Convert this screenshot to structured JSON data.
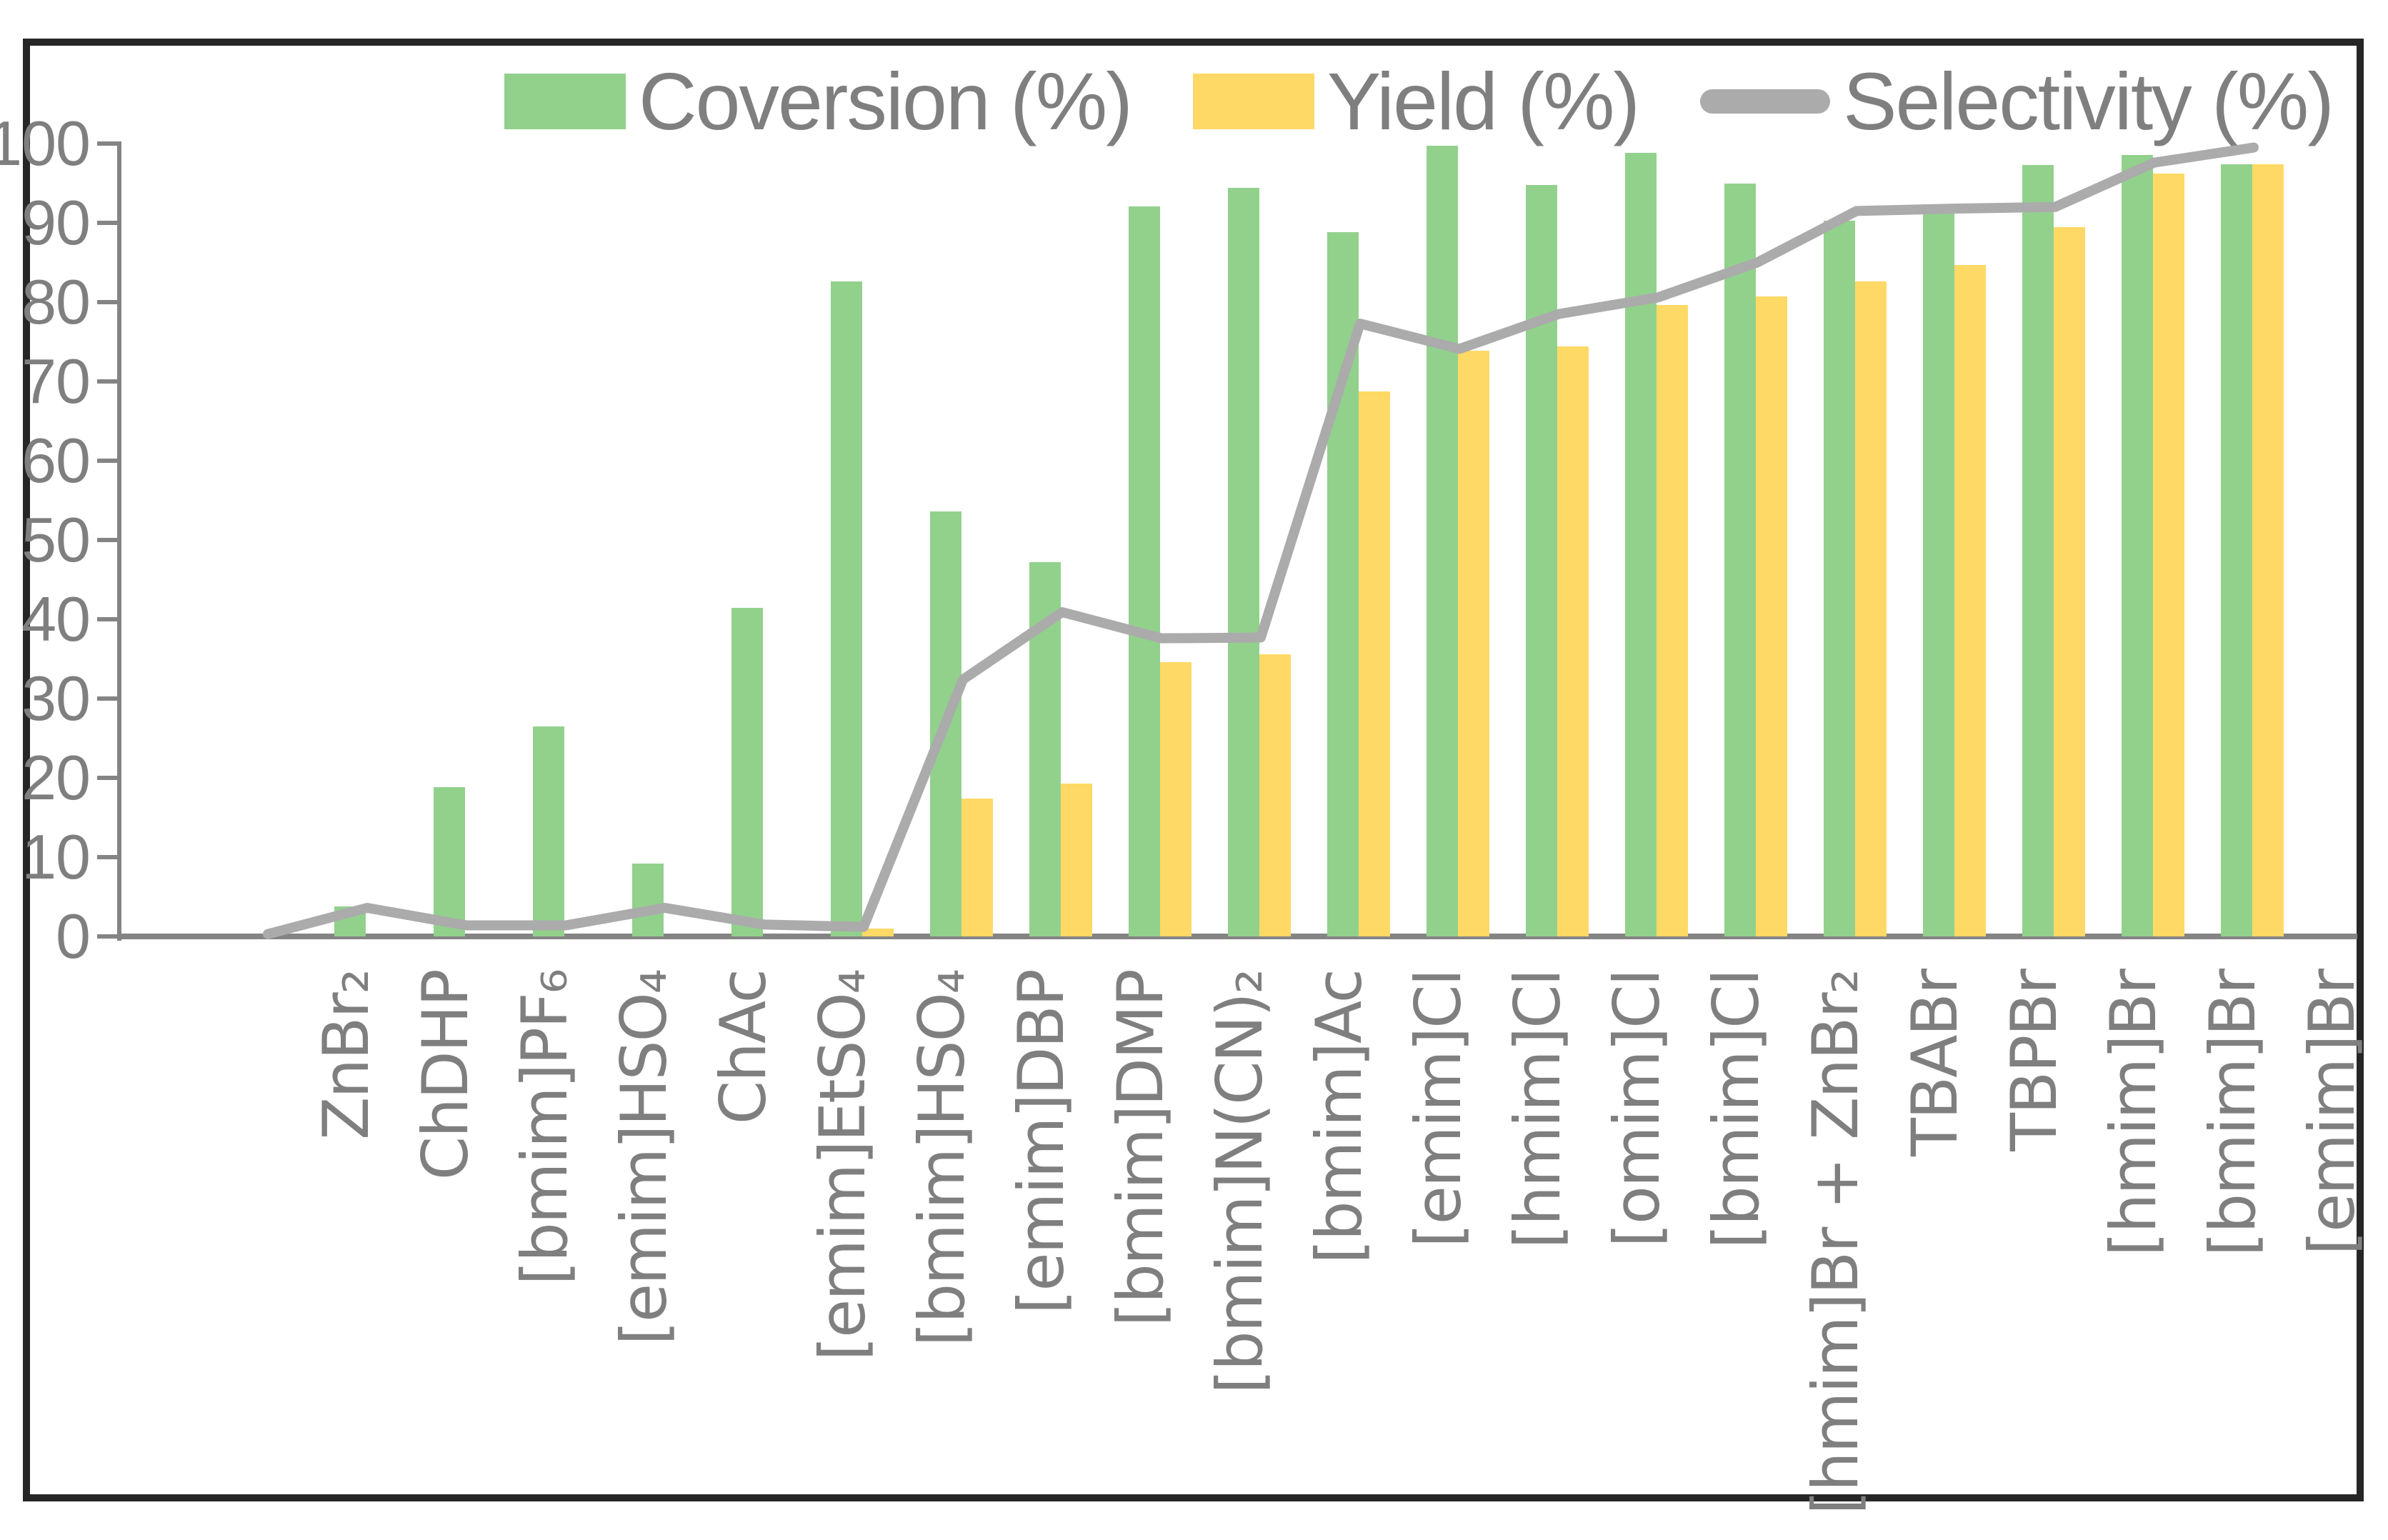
{
  "figure": {
    "background": "#ffffff",
    "border_color": "#262626"
  },
  "colors": {
    "conversion_bar": "#92D18C",
    "yield_bar": "#FFD965",
    "selectivity_line": "#ABABAB",
    "axis": "#848484",
    "text": "#7f7f7f"
  },
  "chart_data": {
    "type": "bar",
    "title": "",
    "xlabel": "",
    "ylabel": "",
    "ylim": [
      0,
      100
    ],
    "yticks": [
      0,
      10,
      20,
      30,
      40,
      50,
      60,
      70,
      80,
      90,
      100
    ],
    "grid": false,
    "legend_position": "top",
    "categories": [
      "ZnBr₂",
      "ChDHP",
      "[bmim]PF₆",
      "[emim]HSO₄",
      "ChAc",
      "[emim]EtSO₄",
      "[bmim]HSO₄",
      "[emim]DBP",
      "[bmim]DMP",
      "[bmim]N(CN)₂",
      "[bmim]Ac",
      "[emim]Cl",
      "[hmim]Cl",
      "[omim]Cl",
      "[bmim]Cl",
      "[hmim]Br + ZnBr₂",
      "TBABr",
      "TBPBr",
      "[hmim]Br",
      "[bmim]Br",
      "[emim]Br"
    ],
    "series": [
      {
        "name": "Coversion (%)",
        "type": "bar",
        "color": "#92D18C",
        "values": [
          0,
          3.8,
          18.8,
          26.5,
          9.2,
          41.4,
          82.6,
          53.6,
          47.2,
          92.1,
          94.4,
          88.8,
          99.7,
          94.8,
          98.8,
          95.0,
          90.3,
          92.3,
          97.3,
          98.6,
          97.4
        ]
      },
      {
        "name": "Yield (%)",
        "type": "bar",
        "color": "#FFD965",
        "values": [
          0,
          0,
          0,
          0,
          0,
          0,
          1.0,
          17.4,
          19.3,
          34.6,
          35.6,
          68.7,
          73.9,
          74.4,
          79.6,
          80.7,
          82.6,
          84.7,
          89.5,
          96.2,
          97.4
        ]
      },
      {
        "name": "Selectivity (%)",
        "type": "line",
        "color": "#ABABAB",
        "values": [
          0.3,
          3.6,
          1.4,
          1.4,
          3.6,
          1.5,
          1.2,
          32.4,
          40.9,
          37.6,
          37.7,
          77.3,
          74.1,
          78.5,
          80.6,
          85.0,
          91.5,
          91.8,
          92.0,
          97.6,
          99.5
        ]
      }
    ]
  }
}
